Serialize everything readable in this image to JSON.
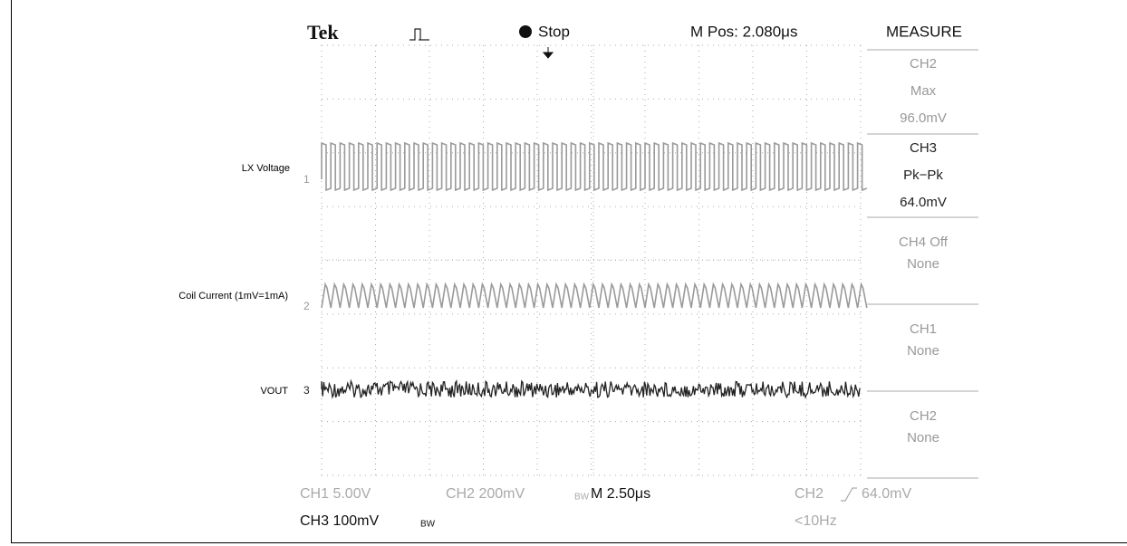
{
  "labels": [
    "LX Voltage",
    "Coil Current (1mV=1mA)",
    "VOUT"
  ],
  "scope": {
    "header": {
      "brand": "Tek",
      "state": "Stop",
      "position": "M Pos: 2.080μs",
      "menu": "MEASURE"
    },
    "markers": [
      "1",
      "2",
      "3"
    ],
    "menu": [
      {
        "lines": [
          "CH2",
          "Max",
          "96.0mV"
        ],
        "active": false
      },
      {
        "lines": [
          "CH3",
          "Pk−Pk",
          "64.0mV"
        ],
        "active": true
      },
      {
        "lines": [
          "CH4 Off",
          "None"
        ],
        "active": false
      },
      {
        "lines": [
          "CH1",
          "None"
        ],
        "active": false
      },
      {
        "lines": [
          "CH2",
          "None"
        ],
        "active": false
      }
    ],
    "footer": {
      "ch1": "CH1  5.00V",
      "ch2": "CH2  200mV",
      "ch2_bw": "BW",
      "timebase": "M 2.50μs",
      "trigger_source": "CH2",
      "trigger_level": "64.0mV",
      "ch3": "CH3  100mV",
      "ch3_bw": "BW",
      "trigger_freq": "<10Hz"
    }
  }
}
